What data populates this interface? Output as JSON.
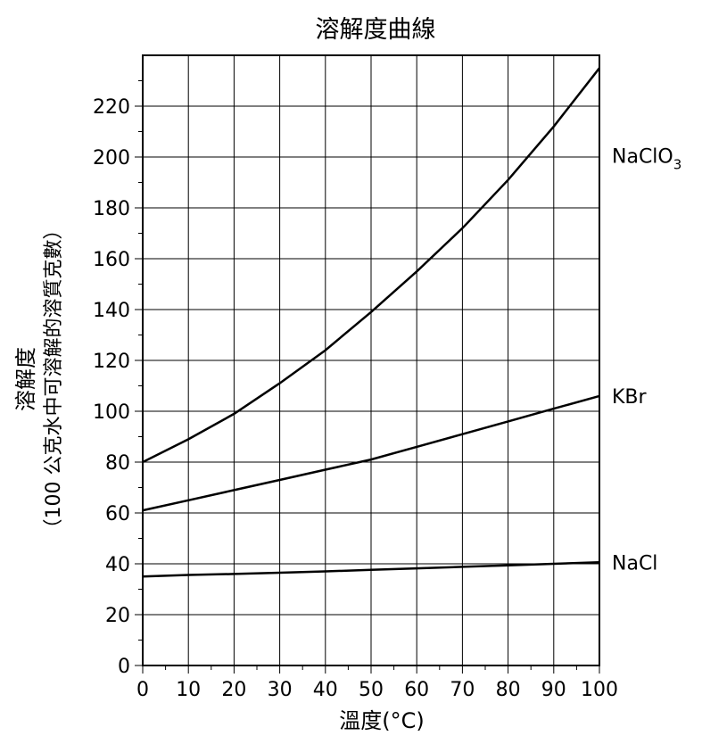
{
  "chart_data": {
    "type": "line",
    "title": "溶解度曲線",
    "xlabel": "溫度(°C)",
    "ylabel": "溶解度",
    "ylabel_sub": "（100 公克水中可溶解的溶質克數）",
    "xlim": [
      0,
      100
    ],
    "ylim": [
      0,
      240
    ],
    "x_ticks": [
      0,
      10,
      20,
      30,
      40,
      50,
      60,
      70,
      80,
      90,
      100
    ],
    "y_ticks": [
      0,
      20,
      40,
      60,
      80,
      100,
      120,
      140,
      160,
      180,
      200,
      220
    ],
    "grid": true,
    "series": [
      {
        "name": "NaClO",
        "name_sub": "3",
        "x": [
          0,
          10,
          20,
          30,
          40,
          50,
          60,
          70,
          80,
          90,
          100
        ],
        "y": [
          80,
          89,
          99,
          111,
          124,
          139,
          155,
          172,
          191,
          212,
          235
        ]
      },
      {
        "name": "KBr",
        "x": [
          0,
          10,
          20,
          30,
          40,
          50,
          60,
          70,
          80,
          90,
          100
        ],
        "y": [
          61,
          65,
          69,
          73,
          77,
          81,
          86,
          91,
          96,
          101,
          106
        ]
      },
      {
        "name": "NaCl",
        "x": [
          0,
          10,
          20,
          30,
          40,
          50,
          60,
          70,
          80,
          90,
          100
        ],
        "y": [
          35,
          35.6,
          36,
          36.5,
          37,
          37.6,
          38.2,
          38.8,
          39.4,
          40,
          40.6
        ]
      }
    ]
  }
}
